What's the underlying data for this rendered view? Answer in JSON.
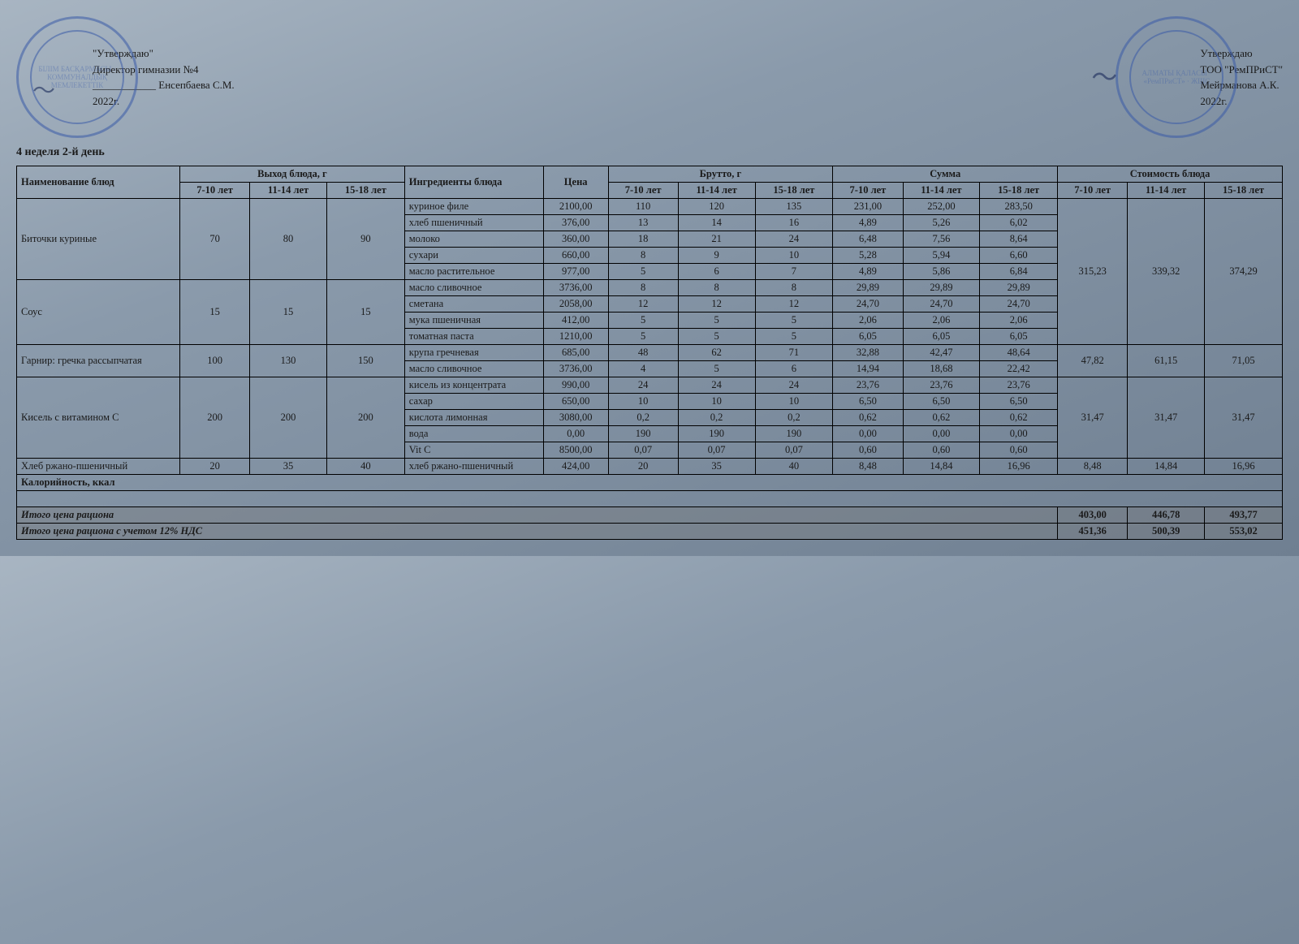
{
  "left_approval": {
    "line1": "\"Утверждаю\"",
    "line2": "Директор гимназии №4",
    "line3": "____________ Енсепбаева С.М.",
    "line4": "2022г.",
    "stamp_hint": "БІЛІМ БАСҚАРМАСЫ · КОММУНАЛДЫҚ МЕМЛЕКЕТТІК"
  },
  "right_approval": {
    "line1": "Утверждаю",
    "line2": "ТОО \"РемПРиСТ\"",
    "line3": "Мейрманова А.К.",
    "line4": "2022г.",
    "stamp_hint": "АЛМАТЫ ҚАЛАСЫ · «РемПРиСТ» · ЖШС"
  },
  "subtitle": "4 неделя 2-й день",
  "headers": {
    "dish": "Наименование блюд",
    "yield": "Выход блюда, г",
    "ingredients": "Ингредиенты блюда",
    "price": "Цена",
    "brutto": "Брутто, г",
    "sum": "Сумма",
    "dish_cost": "Стоимость блюда",
    "ages": [
      "7-10 лет",
      "11-14 лет",
      "15-18 лет"
    ]
  },
  "dishes": [
    {
      "name": "Биточки куриные",
      "yield": [
        "70",
        "80",
        "90"
      ],
      "cost": [
        "315,23",
        "339,32",
        "374,29"
      ],
      "ingredients": [
        {
          "n": "куриное филе",
          "p": "2100,00",
          "b": [
            "110",
            "120",
            "135"
          ],
          "s": [
            "231,00",
            "252,00",
            "283,50"
          ]
        },
        {
          "n": "хлеб пшеничный",
          "p": "376,00",
          "b": [
            "13",
            "14",
            "16"
          ],
          "s": [
            "4,89",
            "5,26",
            "6,02"
          ]
        },
        {
          "n": "молоко",
          "p": "360,00",
          "b": [
            "18",
            "21",
            "24"
          ],
          "s": [
            "6,48",
            "7,56",
            "8,64"
          ]
        },
        {
          "n": "сухари",
          "p": "660,00",
          "b": [
            "8",
            "9",
            "10"
          ],
          "s": [
            "5,28",
            "5,94",
            "6,60"
          ]
        },
        {
          "n": "масло растительное",
          "p": "977,00",
          "b": [
            "5",
            "6",
            "7"
          ],
          "s": [
            "4,89",
            "5,86",
            "6,84"
          ]
        }
      ]
    },
    {
      "name": "Соус",
      "yield": [
        "15",
        "15",
        "15"
      ],
      "cost": [
        "",
        "",
        ""
      ],
      "ingredients": [
        {
          "n": "масло сливочное",
          "p": "3736,00",
          "b": [
            "8",
            "8",
            "8"
          ],
          "s": [
            "29,89",
            "29,89",
            "29,89"
          ]
        },
        {
          "n": "сметана",
          "p": "2058,00",
          "b": [
            "12",
            "12",
            "12"
          ],
          "s": [
            "24,70",
            "24,70",
            "24,70"
          ]
        },
        {
          "n": "мука пшеничная",
          "p": "412,00",
          "b": [
            "5",
            "5",
            "5"
          ],
          "s": [
            "2,06",
            "2,06",
            "2,06"
          ]
        },
        {
          "n": "томатная паста",
          "p": "1210,00",
          "b": [
            "5",
            "5",
            "5"
          ],
          "s": [
            "6,05",
            "6,05",
            "6,05"
          ]
        }
      ]
    },
    {
      "name": "Гарнир: гречка рассыпчатая",
      "yield": [
        "100",
        "130",
        "150"
      ],
      "cost": [
        "47,82",
        "61,15",
        "71,05"
      ],
      "ingredients": [
        {
          "n": "крупа гречневая",
          "p": "685,00",
          "b": [
            "48",
            "62",
            "71"
          ],
          "s": [
            "32,88",
            "42,47",
            "48,64"
          ]
        },
        {
          "n": "масло сливочное",
          "p": "3736,00",
          "b": [
            "4",
            "5",
            "6"
          ],
          "s": [
            "14,94",
            "18,68",
            "22,42"
          ]
        }
      ]
    },
    {
      "name": "Кисель с витамином С",
      "yield": [
        "200",
        "200",
        "200"
      ],
      "cost": [
        "31,47",
        "31,47",
        "31,47"
      ],
      "ingredients": [
        {
          "n": "кисель из концентрата",
          "p": "990,00",
          "b": [
            "24",
            "24",
            "24"
          ],
          "s": [
            "23,76",
            "23,76",
            "23,76"
          ]
        },
        {
          "n": "сахар",
          "p": "650,00",
          "b": [
            "10",
            "10",
            "10"
          ],
          "s": [
            "6,50",
            "6,50",
            "6,50"
          ]
        },
        {
          "n": "кислота лимонная",
          "p": "3080,00",
          "b": [
            "0,2",
            "0,2",
            "0,2"
          ],
          "s": [
            "0,62",
            "0,62",
            "0,62"
          ]
        },
        {
          "n": "вода",
          "p": "0,00",
          "b": [
            "190",
            "190",
            "190"
          ],
          "s": [
            "0,00",
            "0,00",
            "0,00"
          ]
        },
        {
          "n": "Vit C",
          "p": "8500,00",
          "b": [
            "0,07",
            "0,07",
            "0,07"
          ],
          "s": [
            "0,60",
            "0,60",
            "0,60"
          ]
        }
      ]
    },
    {
      "name": "Хлеб ржано-пшеничный",
      "yield": [
        "20",
        "35",
        "40"
      ],
      "cost": [
        "8,48",
        "14,84",
        "16,96"
      ],
      "ingredients": [
        {
          "n": "хлеб ржано-пшеничный",
          "p": "424,00",
          "b": [
            "20",
            "35",
            "40"
          ],
          "s": [
            "8,48",
            "14,84",
            "16,96"
          ]
        }
      ]
    }
  ],
  "calorie_label": "Калорийность, ккал",
  "totals": {
    "row1_label": "Итого цена рациона",
    "row1": [
      "403,00",
      "446,78",
      "493,77"
    ],
    "row2_label": "Итого цена рациона с учетом 12% НДС",
    "row2": [
      "451,36",
      "500,39",
      "553,02"
    ]
  }
}
